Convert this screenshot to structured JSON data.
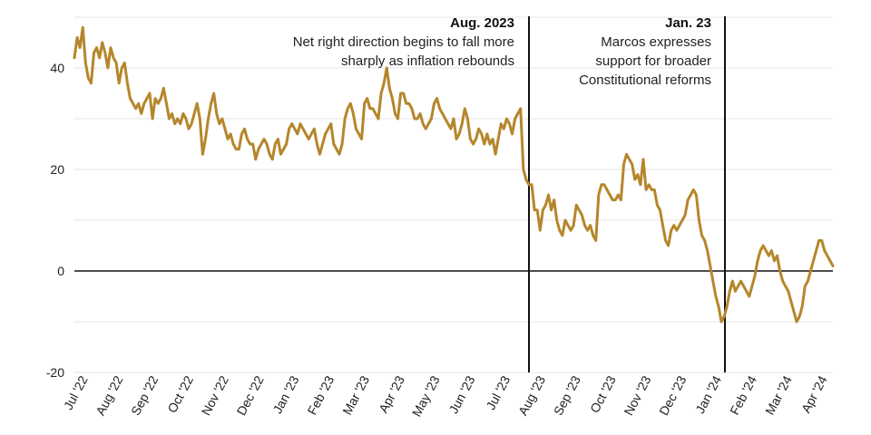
{
  "chart_data": {
    "type": "line",
    "title": "",
    "xlabel": "",
    "ylabel": "",
    "ylim": [
      -20,
      50
    ],
    "yticks": [
      -20,
      0,
      20,
      40
    ],
    "grid": true,
    "x_tick_labels": [
      "Jul '22",
      "Aug '22",
      "Sep '22",
      "Oct '22",
      "Nov '22",
      "Dec '22",
      "Jan '23",
      "Feb '23",
      "Mar '23",
      "Apr '23",
      "May '23",
      "Jun '23",
      "Jul '23",
      "Aug '23",
      "Sep '23",
      "Oct '23",
      "Nov '23",
      "Dec '23",
      "Jan '24",
      "Feb '24",
      "Mar '24",
      "Apr '24"
    ],
    "series_color": "#b5862b",
    "series": [
      {
        "values": [
          42,
          46,
          44,
          48,
          41,
          38,
          37,
          43,
          44,
          42,
          45,
          43,
          40,
          44,
          42,
          41,
          37,
          40,
          41,
          37,
          34,
          33,
          32,
          33,
          31,
          33,
          34,
          35,
          30,
          34,
          33,
          34,
          36,
          33,
          30,
          31,
          29,
          30,
          29,
          31,
          30,
          28,
          29,
          31,
          33,
          30,
          23,
          26,
          30,
          33,
          35,
          31,
          29,
          30,
          28,
          26,
          27,
          25,
          24,
          24,
          27,
          28,
          26,
          25,
          25,
          22,
          24,
          25,
          26,
          25,
          23,
          22,
          25,
          26,
          23,
          24,
          25,
          28,
          29,
          28,
          27,
          29,
          28,
          27,
          26,
          27,
          28,
          25,
          23,
          25,
          27,
          28,
          29,
          25,
          24,
          23,
          25,
          30,
          32,
          33,
          31,
          28,
          27,
          26,
          33,
          34,
          32,
          32,
          31,
          30,
          35,
          37,
          40,
          36,
          34,
          31,
          30,
          35,
          35,
          33,
          33,
          32,
          30,
          30,
          31,
          29,
          28,
          29,
          30,
          33,
          34,
          32,
          31,
          30,
          29,
          28,
          30,
          26,
          27,
          29,
          32,
          30,
          26,
          25,
          26,
          28,
          27,
          25,
          27,
          25,
          26,
          23,
          26,
          29,
          28,
          30,
          29,
          27,
          30,
          31,
          32,
          20,
          18,
          17,
          17,
          12,
          12,
          8,
          12,
          13,
          15,
          12,
          14,
          10,
          8,
          7,
          10,
          9,
          8,
          9,
          13,
          12,
          11,
          9,
          8,
          9,
          7,
          6,
          15,
          17,
          17,
          16,
          15,
          14,
          14,
          15,
          14,
          21,
          23,
          22,
          21,
          18,
          19,
          17,
          22,
          16,
          17,
          16,
          16,
          13,
          12,
          9,
          6,
          5,
          8,
          9,
          8,
          9,
          10,
          11,
          14,
          15,
          16,
          15,
          10,
          7,
          6,
          4,
          1,
          -2,
          -5,
          -7,
          -10,
          -9,
          -7,
          -4,
          -2,
          -4,
          -3,
          -2,
          -3,
          -4,
          -5,
          -3,
          -1,
          2,
          4,
          5,
          4,
          3,
          4,
          2,
          3,
          0,
          -2,
          -3,
          -4,
          -6,
          -8,
          -10,
          -9,
          -7,
          -3,
          -2,
          0,
          2,
          4,
          6,
          6,
          4,
          3,
          2,
          1
        ]
      }
    ],
    "annotations": [
      {
        "title": "Aug. 2023",
        "lines": [
          "Net right direction begins to fall more",
          "sharply as inflation rebounds"
        ]
      },
      {
        "title": "Jan. 23",
        "lines": [
          "Marcos expresses",
          "support for broader",
          "Constitutional reforms"
        ]
      }
    ]
  }
}
